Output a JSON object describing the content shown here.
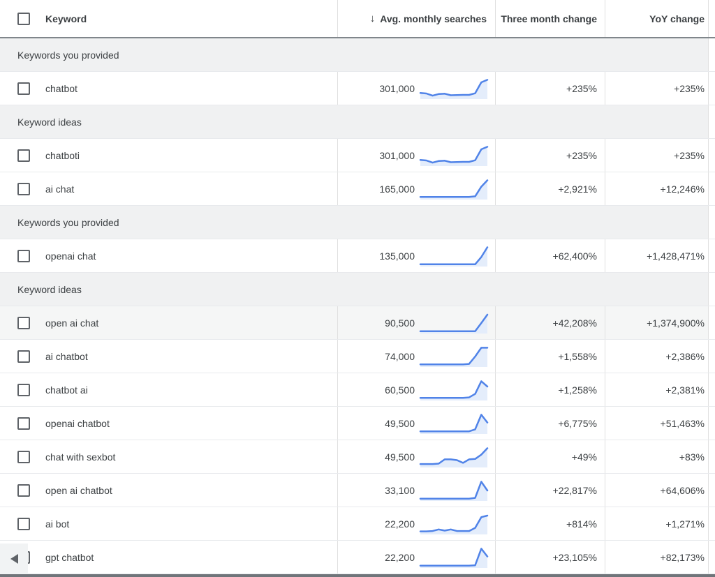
{
  "header": {
    "keyword_label": "Keyword",
    "sort_icon": "↓",
    "avg_monthly_label": "Avg. monthly searches",
    "three_month_label": "Three month change",
    "yoy_label": "YoY change"
  },
  "colors": {
    "spark_line": "#5083e8",
    "spark_fill": "#e4edfb",
    "section_bg": "#f0f1f2",
    "highlight_row_bg": "#f5f6f6",
    "text": "#3c4043",
    "divider": "#e0e0e0",
    "header_border": "#80868b"
  },
  "rows": [
    {
      "type": "section",
      "label": "Keywords you provided"
    },
    {
      "type": "keyword",
      "keyword": "chatbot",
      "searches": "301,000",
      "three_month": "+235%",
      "yoy": "+235%",
      "highlighted": false,
      "sparkline": [
        0.28,
        0.25,
        0.14,
        0.22,
        0.24,
        0.16,
        0.17,
        0.18,
        0.18,
        0.26,
        0.82,
        0.95
      ]
    },
    {
      "type": "section",
      "label": "Keyword ideas"
    },
    {
      "type": "keyword",
      "keyword": "chatboti",
      "searches": "301,000",
      "three_month": "+235%",
      "yoy": "+235%",
      "highlighted": false,
      "sparkline": [
        0.28,
        0.25,
        0.14,
        0.22,
        0.24,
        0.16,
        0.17,
        0.18,
        0.18,
        0.26,
        0.82,
        0.95
      ]
    },
    {
      "type": "keyword",
      "keyword": "ai chat",
      "searches": "165,000",
      "three_month": "+2,921%",
      "yoy": "+12,246%",
      "highlighted": false,
      "sparkline": [
        0.1,
        0.1,
        0.1,
        0.1,
        0.1,
        0.1,
        0.1,
        0.1,
        0.1,
        0.13,
        0.62,
        0.95
      ]
    },
    {
      "type": "section",
      "label": "Keywords you provided"
    },
    {
      "type": "keyword",
      "keyword": "openai chat",
      "searches": "135,000",
      "three_month": "+62,400%",
      "yoy": "+1,428,471%",
      "highlighted": false,
      "sparkline": [
        0.08,
        0.08,
        0.08,
        0.08,
        0.08,
        0.08,
        0.08,
        0.08,
        0.08,
        0.08,
        0.45,
        0.95
      ]
    },
    {
      "type": "section",
      "label": "Keyword ideas"
    },
    {
      "type": "keyword",
      "keyword": "open ai chat",
      "searches": "90,500",
      "three_month": "+42,208%",
      "yoy": "+1,374,900%",
      "highlighted": true,
      "sparkline": [
        0.08,
        0.08,
        0.08,
        0.08,
        0.08,
        0.08,
        0.08,
        0.08,
        0.08,
        0.08,
        0.5,
        0.93
      ]
    },
    {
      "type": "keyword",
      "keyword": "ai chatbot",
      "searches": "74,000",
      "three_month": "+1,558%",
      "yoy": "+2,386%",
      "highlighted": false,
      "sparkline": [
        0.1,
        0.1,
        0.1,
        0.1,
        0.1,
        0.1,
        0.1,
        0.1,
        0.12,
        0.5,
        0.95,
        0.95
      ]
    },
    {
      "type": "keyword",
      "keyword": "chatbot ai",
      "searches": "60,500",
      "three_month": "+1,258%",
      "yoy": "+2,381%",
      "highlighted": false,
      "sparkline": [
        0.1,
        0.1,
        0.1,
        0.1,
        0.1,
        0.1,
        0.1,
        0.1,
        0.12,
        0.3,
        0.95,
        0.68
      ]
    },
    {
      "type": "keyword",
      "keyword": "openai chatbot",
      "searches": "49,500",
      "three_month": "+6,775%",
      "yoy": "+51,463%",
      "highlighted": false,
      "sparkline": [
        0.1,
        0.1,
        0.1,
        0.1,
        0.1,
        0.1,
        0.1,
        0.1,
        0.1,
        0.2,
        0.95,
        0.55
      ]
    },
    {
      "type": "keyword",
      "keyword": "chat with sexbot",
      "searches": "49,500",
      "three_month": "+49%",
      "yoy": "+83%",
      "highlighted": false,
      "sparkline": [
        0.14,
        0.14,
        0.14,
        0.16,
        0.38,
        0.38,
        0.34,
        0.2,
        0.38,
        0.4,
        0.62,
        0.95
      ]
    },
    {
      "type": "keyword",
      "keyword": "open ai chatbot",
      "searches": "33,100",
      "three_month": "+22,817%",
      "yoy": "+64,606%",
      "highlighted": false,
      "sparkline": [
        0.08,
        0.08,
        0.08,
        0.08,
        0.08,
        0.08,
        0.08,
        0.08,
        0.08,
        0.12,
        0.95,
        0.5
      ]
    },
    {
      "type": "keyword",
      "keyword": "ai bot",
      "searches": "22,200",
      "three_month": "+814%",
      "yoy": "+1,271%",
      "highlighted": false,
      "sparkline": [
        0.12,
        0.12,
        0.14,
        0.22,
        0.16,
        0.22,
        0.14,
        0.14,
        0.14,
        0.3,
        0.85,
        0.93
      ]
    },
    {
      "type": "keyword",
      "keyword": "gpt chatbot",
      "searches": "22,200",
      "three_month": "+23,105%",
      "yoy": "+82,173%",
      "highlighted": false,
      "sparkline": [
        0.08,
        0.08,
        0.08,
        0.08,
        0.08,
        0.08,
        0.08,
        0.08,
        0.08,
        0.1,
        0.95,
        0.55
      ]
    }
  ]
}
